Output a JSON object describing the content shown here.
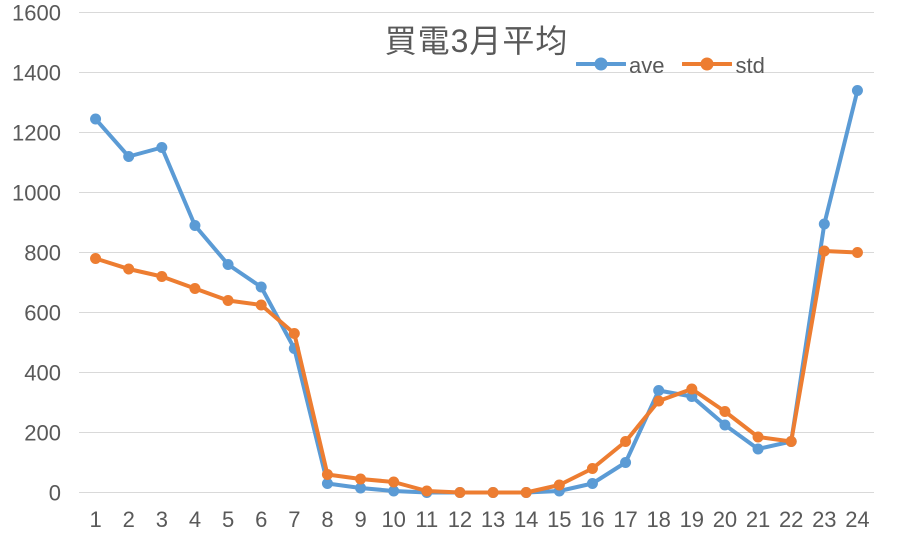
{
  "chart_data": {
    "type": "line",
    "title": "買電3月平均",
    "xlabel": "",
    "ylabel": "",
    "categories": [
      "1",
      "2",
      "3",
      "4",
      "5",
      "6",
      "7",
      "8",
      "9",
      "10",
      "11",
      "12",
      "13",
      "14",
      "15",
      "16",
      "17",
      "18",
      "19",
      "20",
      "21",
      "22",
      "23",
      "24"
    ],
    "series": [
      {
        "name": "ave",
        "color": "#5B9BD5",
        "values": [
          1245,
          1120,
          1150,
          890,
          760,
          685,
          480,
          30,
          15,
          5,
          0,
          0,
          0,
          0,
          5,
          30,
          100,
          340,
          320,
          225,
          145,
          170,
          895,
          1340
        ]
      },
      {
        "name": "std",
        "color": "#ED7D31",
        "values": [
          780,
          745,
          720,
          680,
          640,
          625,
          530,
          60,
          45,
          35,
          5,
          0,
          0,
          0,
          25,
          80,
          170,
          305,
          345,
          270,
          185,
          170,
          805,
          800
        ]
      }
    ],
    "y_axis": {
      "min": 0,
      "max": 1600,
      "step": 200,
      "ticks": [
        0,
        200,
        400,
        600,
        800,
        1000,
        1200,
        1400,
        1600
      ]
    },
    "grid": true,
    "legend_position": "top-right",
    "style": {
      "gridline_color": "#D9D9D9",
      "axis_text_color": "#595959",
      "background_color": "#FFFFFF",
      "line_width": 4,
      "marker_radius": 5.5
    }
  }
}
